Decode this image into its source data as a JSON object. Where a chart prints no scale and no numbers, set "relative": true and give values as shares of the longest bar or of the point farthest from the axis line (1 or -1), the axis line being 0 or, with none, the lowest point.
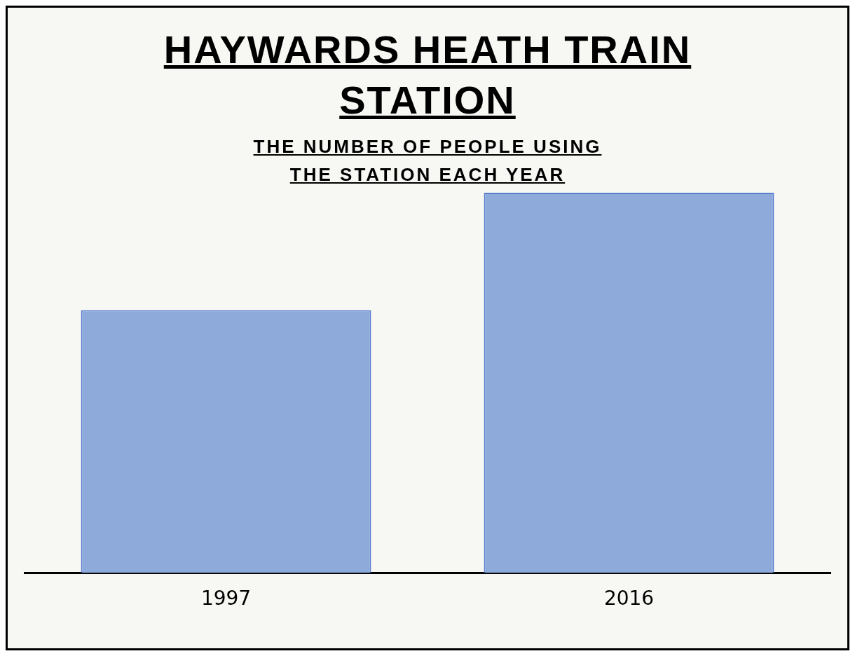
{
  "chart_data": {
    "type": "bar",
    "title": "HAYWARDS HEATH TRAIN STATION",
    "subtitle": "THE NUMBER OF PEOPLE USING THE STATION EACH YEAR",
    "categories": [
      "1997",
      "2016"
    ],
    "values": [
      0.691,
      1
    ],
    "color": "#8eaadb",
    "relative": true
  }
}
